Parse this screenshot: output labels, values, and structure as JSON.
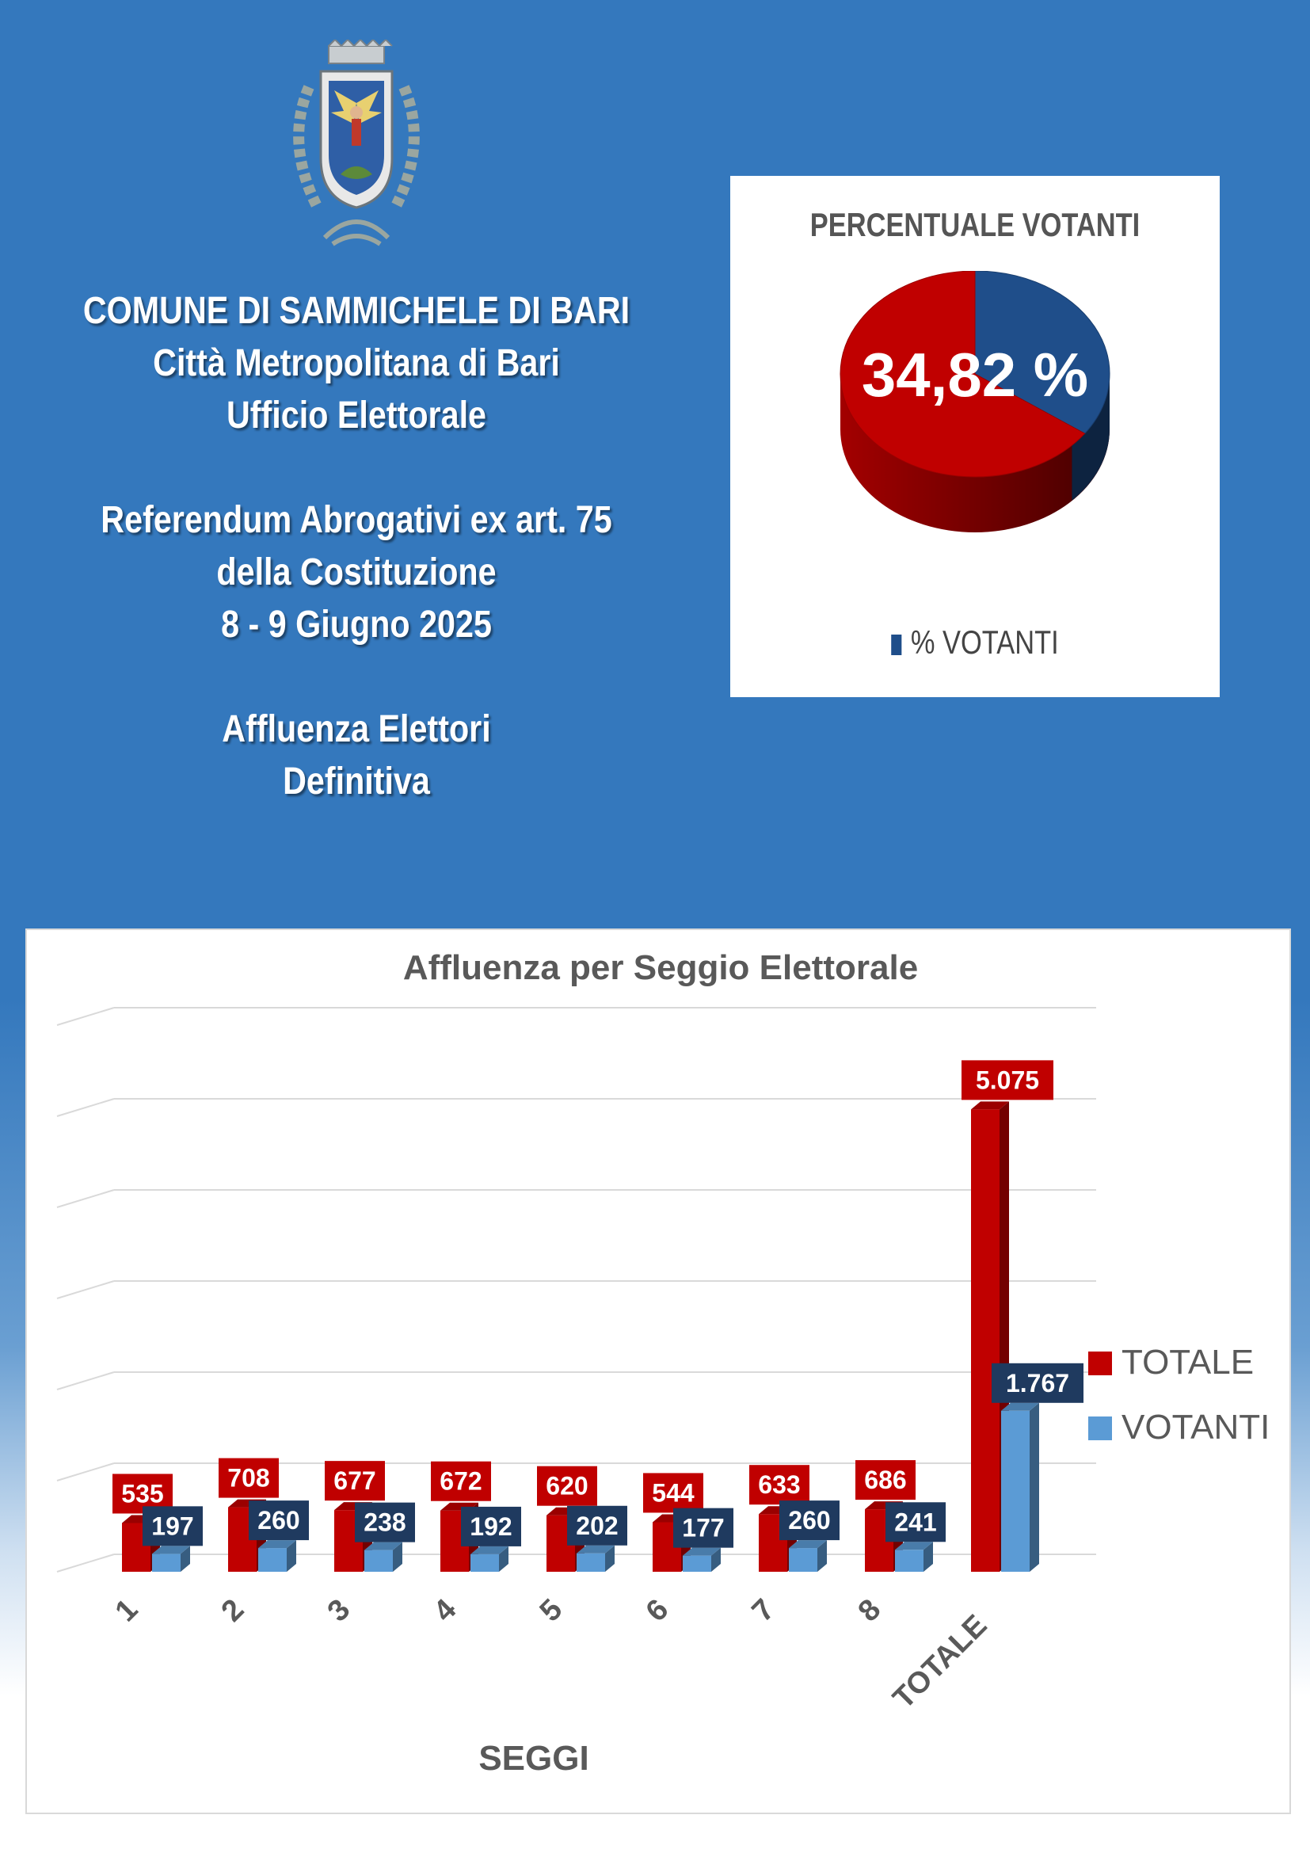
{
  "header": {
    "line1": "COMUNE DI SAMMICHELE DI BARI",
    "line2": "Città Metropolitana di Bari",
    "line3": "Ufficio Elettorale",
    "line4": "Referendum Abrogativi ex art. 75",
    "line5": "della Costituzione",
    "line6": "8 - 9 Giugno 2025",
    "line7": "Affluenza Elettori",
    "line8": "Definitiva"
  },
  "crest": {
    "icon": "municipal-coat-of-arms"
  },
  "chart_data": [
    {
      "type": "pie",
      "title": "PERCENTUALE VOTANTI",
      "slices": [
        {
          "label": "% VOTANTI",
          "value": 34.82,
          "color": "#1f4e8a"
        },
        {
          "label": "",
          "value": 65.18,
          "color": "#c00000"
        }
      ],
      "data_label": "34,82 %",
      "legend": [
        "% VOTANTI"
      ],
      "legend_position": "bottom"
    },
    {
      "type": "bar",
      "title": "Affluenza per Seggio Elettorale",
      "xlabel": "SEGGI",
      "ylabel": "",
      "categories": [
        "1",
        "2",
        "3",
        "4",
        "5",
        "6",
        "7",
        "8",
        "TOTALE"
      ],
      "series": [
        {
          "name": "TOTALE",
          "color": "#c00000",
          "values": [
            535,
            708,
            677,
            672,
            620,
            544,
            633,
            686,
            5075
          ],
          "labels": [
            "535",
            "708",
            "677",
            "672",
            "620",
            "544",
            "633",
            "686",
            "5.075"
          ]
        },
        {
          "name": "VOTANTI",
          "color": "#5b9bd5",
          "values": [
            197,
            260,
            238,
            192,
            202,
            177,
            260,
            241,
            1767
          ],
          "labels": [
            "197",
            "260",
            "238",
            "192",
            "202",
            "177",
            "260",
            "241",
            "1.767"
          ]
        }
      ],
      "ylim": [
        0,
        6000
      ],
      "grid": true,
      "legend_position": "right",
      "bar_style": "3d"
    }
  ]
}
